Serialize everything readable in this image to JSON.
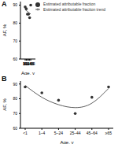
{
  "chart_data": [
    {
      "type": "line",
      "title": "A",
      "x_label": "Age, y",
      "y_label": "AF, %",
      "categories": [
        "<1",
        "1–4",
        "5–24",
        "25–44",
        "45–64",
        "≥65"
      ],
      "ylim": [
        60,
        92
      ],
      "yticks": [
        60,
        70,
        80,
        90
      ],
      "legend": "upper right",
      "series": [
        {
          "name": "Estimated attributable fraction",
          "type": "scatter",
          "marker": "circle",
          "color": "#333333",
          "values": [
            89,
            88,
            85,
            85,
            83,
            90
          ]
        },
        {
          "name": "Estimated attributable fraction trend",
          "type": "line",
          "line_style": "solid",
          "color": "#333333",
          "values": [
            87.5,
            87,
            86.5,
            86,
            85.5,
            85
          ]
        }
      ]
    },
    {
      "type": "line",
      "title": "B",
      "x_label": "Age, y",
      "y_label": "AF, %",
      "categories": [
        "<1",
        "1–4",
        "5–24",
        "25–44",
        "45–64",
        "≥65"
      ],
      "ylim": [
        60,
        92
      ],
      "yticks": [
        60,
        70,
        80,
        90
      ],
      "series": [
        {
          "type": "scatter",
          "marker": "circle",
          "color": "#333333",
          "values": [
            88,
            84,
            79,
            70,
            81,
            88
          ]
        },
        {
          "type": "line",
          "line_style": "solid",
          "color": "#333333",
          "values": [
            89,
            81,
            76,
            74,
            77,
            87
          ]
        }
      ]
    }
  ]
}
